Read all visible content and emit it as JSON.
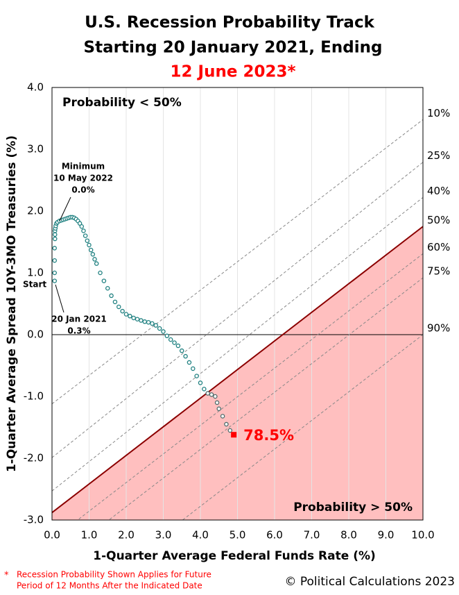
{
  "chart_data": {
    "type": "scatter",
    "title": [
      "U.S. Recession Probability Track",
      "Starting 20 January 2021, Ending"
    ],
    "subtitle": "12 June 2023*",
    "x_label": "1-Quarter Average Federal Funds Rate (%)",
    "y_label": "1-Quarter Average Spread 10Y-3MO Treasuries (%)",
    "xlim": [
      0,
      10
    ],
    "ylim": [
      -3,
      4
    ],
    "xticks": [
      {
        "value": 0,
        "label": "0.0"
      },
      {
        "value": 1,
        "label": "1.0"
      },
      {
        "value": 2,
        "label": "2.0"
      },
      {
        "value": 3,
        "label": "3.0"
      },
      {
        "value": 4,
        "label": "4.0"
      },
      {
        "value": 5,
        "label": "5.0"
      },
      {
        "value": 6,
        "label": "6.0"
      },
      {
        "value": 7,
        "label": "7.0"
      },
      {
        "value": 8,
        "label": "8.0"
      },
      {
        "value": 9,
        "label": "9.0"
      },
      {
        "value": 10,
        "label": "10.0"
      }
    ],
    "yticks": [
      {
        "value": -3,
        "label": "-3.0"
      },
      {
        "value": -2,
        "label": "-2.0"
      },
      {
        "value": -1,
        "label": "-1.0"
      },
      {
        "value": 0,
        "label": "0.0"
      },
      {
        "value": 1,
        "label": "1.0"
      },
      {
        "value": 2,
        "label": "2.0"
      },
      {
        "value": 3,
        "label": "3.0"
      },
      {
        "value": 4,
        "label": "4.0"
      }
    ],
    "grid": true,
    "probability_lines": [
      {
        "label": "10%",
        "y_start": -1.12,
        "y_end": 3.48
      },
      {
        "label": "25%",
        "y_start": -1.99,
        "y_end": 2.79
      },
      {
        "label": "40%",
        "y_start": -2.53,
        "y_end": 2.22
      },
      {
        "label": "50%",
        "y_start": -2.88,
        "y_end": 1.75
      },
      {
        "label": "60%",
        "y_start": -3.32,
        "y_end": 1.31
      },
      {
        "label": "75%",
        "y_start": -3.71,
        "y_end": 0.92
      },
      {
        "label": "90%",
        "y_start": -4.63,
        "y_end": 0.0
      }
    ],
    "series": [
      {
        "color": "#1f8080",
        "x": [
          0.07,
          0.07,
          0.07,
          0.07,
          0.08,
          0.08,
          0.08,
          0.09,
          0.1,
          0.12,
          0.15,
          0.2,
          0.25,
          0.3,
          0.35,
          0.4,
          0.45,
          0.5,
          0.55,
          0.6,
          0.65,
          0.7,
          0.75,
          0.8,
          0.85,
          0.9,
          0.95,
          1.0,
          1.05,
          1.1,
          1.15,
          1.2,
          1.3,
          1.4,
          1.5,
          1.6,
          1.7,
          1.8,
          1.9,
          2.0,
          2.1,
          2.2,
          2.3,
          2.4,
          2.5,
          2.6,
          2.7,
          2.8,
          2.9,
          3.0,
          3.1,
          3.2,
          3.3,
          3.4,
          3.5,
          3.6,
          3.7,
          3.8,
          3.9,
          4.0,
          4.1,
          4.2,
          4.3,
          4.4,
          4.45,
          4.5,
          4.6,
          4.7,
          4.8,
          4.9
        ],
        "values": [
          0.87,
          1.0,
          1.2,
          1.4,
          1.55,
          1.62,
          1.68,
          1.72,
          1.76,
          1.8,
          1.82,
          1.84,
          1.85,
          1.86,
          1.87,
          1.88,
          1.89,
          1.9,
          1.9,
          1.89,
          1.87,
          1.84,
          1.8,
          1.75,
          1.68,
          1.6,
          1.52,
          1.45,
          1.37,
          1.3,
          1.22,
          1.15,
          1.0,
          0.87,
          0.75,
          0.63,
          0.53,
          0.45,
          0.38,
          0.33,
          0.3,
          0.27,
          0.25,
          0.23,
          0.21,
          0.2,
          0.18,
          0.15,
          0.1,
          0.05,
          -0.02,
          -0.08,
          -0.13,
          -0.18,
          -0.26,
          -0.35,
          -0.45,
          -0.55,
          -0.67,
          -0.78,
          -0.88,
          -0.95,
          -0.97,
          -1.0,
          -1.1,
          -1.2,
          -1.32,
          -1.45,
          -1.55,
          -1.62
        ]
      }
    ],
    "end_point": {
      "x": 4.9,
      "y": -1.62,
      "value": 78.5,
      "value_label": "78.5%"
    },
    "annotations": {
      "top_left": "Probability < 50%",
      "bottom_right": "Probability > 50%",
      "minimum": [
        "Minimum",
        "10 May 2022",
        "0.0%"
      ],
      "start": "Start",
      "start_date": [
        "20 Jan 2021",
        "0.3%"
      ]
    },
    "footnote_marker": "*",
    "footnote": [
      "Recession Probability Shown Applies for Future",
      "Period of 12 Months After the Indicated Date"
    ],
    "credit": "© Political Calculations 2023"
  }
}
